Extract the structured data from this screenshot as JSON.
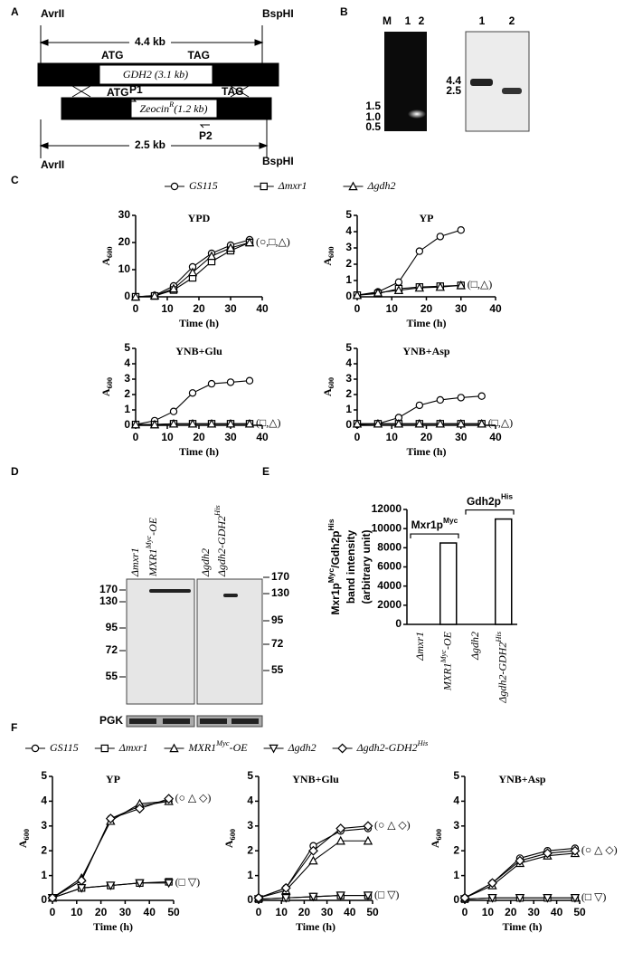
{
  "panel_labels": [
    "A",
    "B",
    "C",
    "D",
    "E",
    "F"
  ],
  "diagram": {
    "avr_top": "AvrII",
    "bsp_top": "BspHI",
    "size_top": "4.4 kb",
    "atg": "ATG",
    "tag": "TAG",
    "gene": "GDH2 (3.1 kb)",
    "atg2": "ATG",
    "p1": "P1",
    "tag2": "TAG",
    "zeocin": "ZeocinR(1.2 kb)",
    "zeocin_sup": [
      "R"
    ],
    "p2": "P2",
    "size_bottom": "2.5 kb",
    "avr_bottom": "AvrII",
    "bsp_bottom": "BspHI"
  },
  "gel_pcr": {
    "lanes": [
      "M",
      "1",
      "2"
    ],
    "markers": [
      "1.5",
      "1.0",
      "0.5"
    ]
  },
  "gel_southern": {
    "lanes": [
      "1",
      "2"
    ],
    "markers": [
      "4.4",
      "2.5"
    ]
  },
  "blot": {
    "lanes": [
      {
        "label": "Δmxr1",
        "sup": []
      },
      {
        "label": "MXR1Myc-OE",
        "sup": [
          "Myc"
        ]
      },
      {
        "label": "Δgdh2",
        "sup": []
      },
      {
        "label": "Δgdh2-GDH2His",
        "sup": [
          "His"
        ]
      }
    ],
    "ladder_left": [
      170,
      130,
      95,
      72,
      55
    ],
    "ladder_right": [
      170,
      130,
      95,
      72,
      55
    ],
    "loading": "PGK"
  },
  "chart_data": [
    {
      "type": "line",
      "title": "YPD",
      "xlabel": "Time (h)",
      "ylabel": "A600",
      "ylabel_sub": [
        "600"
      ],
      "xlim": [
        0,
        40
      ],
      "xticks": [
        0,
        10,
        20,
        30,
        40
      ],
      "ylim": [
        0,
        30
      ],
      "yticks": [
        0,
        10,
        20,
        30
      ],
      "x": [
        0,
        6,
        12,
        18,
        24,
        30,
        36
      ],
      "series": [
        {
          "name": "GS115",
          "marker": "circle",
          "values": [
            0,
            0.5,
            4,
            11,
            16,
            19,
            21
          ]
        },
        {
          "name": "Δmxr1",
          "marker": "square",
          "values": [
            0,
            0.3,
            2.5,
            7,
            13,
            17,
            20
          ]
        },
        {
          "name": "Δgdh2",
          "marker": "triangle",
          "values": [
            0,
            0.4,
            3,
            9,
            15,
            18,
            20
          ]
        }
      ],
      "annotations": [
        "(○,□,△)"
      ]
    },
    {
      "type": "line",
      "title": "YP",
      "xlabel": "Time (h)",
      "ylabel": "A600",
      "ylabel_sub": [
        "600"
      ],
      "xlim": [
        0,
        40
      ],
      "xticks": [
        0,
        10,
        20,
        30,
        40
      ],
      "ylim": [
        0,
        5
      ],
      "yticks": [
        0,
        1,
        2,
        3,
        4,
        5
      ],
      "x": [
        0,
        6,
        12,
        18,
        24,
        30
      ],
      "series": [
        {
          "marker": "circle",
          "values": [
            0.1,
            0.3,
            0.9,
            2.8,
            3.7,
            4.1
          ]
        },
        {
          "marker": "square",
          "values": [
            0.1,
            0.2,
            0.5,
            0.6,
            0.65,
            0.7
          ]
        },
        {
          "marker": "triangle",
          "values": [
            0.1,
            0.25,
            0.4,
            0.55,
            0.6,
            0.7
          ]
        }
      ],
      "annotations": [
        "(□,△)"
      ]
    },
    {
      "type": "line",
      "title": "YNB+Glu",
      "xlabel": "Time (h)",
      "ylabel": "A600",
      "ylabel_sub": [
        "600"
      ],
      "xlim": [
        0,
        40
      ],
      "xticks": [
        0,
        10,
        20,
        30,
        40
      ],
      "ylim": [
        0,
        5
      ],
      "yticks": [
        0,
        1,
        2,
        3,
        4,
        5
      ],
      "x": [
        0,
        6,
        12,
        18,
        24,
        30,
        36
      ],
      "series": [
        {
          "marker": "circle",
          "values": [
            0.05,
            0.3,
            0.9,
            2.1,
            2.7,
            2.8,
            2.9
          ]
        },
        {
          "marker": "square",
          "values": [
            0.05,
            0.05,
            0.1,
            0.1,
            0.1,
            0.1,
            0.1
          ]
        },
        {
          "marker": "triangle",
          "values": [
            0.05,
            0.05,
            0.1,
            0.1,
            0.1,
            0.1,
            0.1
          ]
        }
      ],
      "annotations": [
        "(□,△)"
      ]
    },
    {
      "type": "line",
      "title": "YNB+Asp",
      "xlabel": "Time (h)",
      "ylabel": "A600",
      "ylabel_sub": [
        "600"
      ],
      "xlim": [
        0,
        40
      ],
      "xticks": [
        0,
        10,
        20,
        30,
        40
      ],
      "ylim": [
        0,
        5
      ],
      "yticks": [
        0,
        1,
        2,
        3,
        4,
        5
      ],
      "x": [
        0,
        6,
        12,
        18,
        24,
        30,
        36
      ],
      "series": [
        {
          "marker": "circle",
          "values": [
            0.05,
            0.1,
            0.5,
            1.3,
            1.65,
            1.8,
            1.9
          ]
        },
        {
          "marker": "square",
          "values": [
            0.1,
            0.1,
            0.1,
            0.1,
            0.1,
            0.1,
            0.1
          ]
        },
        {
          "marker": "triangle",
          "values": [
            0.1,
            0.1,
            0.1,
            0.1,
            0.1,
            0.1,
            0.1
          ]
        }
      ],
      "annotations": [
        "(□,△)"
      ]
    },
    {
      "type": "bar",
      "ylabel": [
        "Mxr1pMyc/Gdh2pHis",
        "band intensity",
        "(arbitrary unit)"
      ],
      "ylabel_sups": [
        "Myc",
        "His"
      ],
      "categories": [
        "Δmxr1",
        "MXR1Myc-OE",
        "Δgdh2",
        "Δgdh2-GDH2His"
      ],
      "category_sups": [
        [],
        [
          "Myc"
        ],
        [],
        [
          "His"
        ]
      ],
      "values": [
        0,
        8500,
        0,
        11000
      ],
      "color": "#ffffff",
      "ylim": [
        0,
        12000
      ],
      "yticks": [
        0,
        2000,
        4000,
        6000,
        8000,
        10000,
        12000
      ],
      "groups": [
        {
          "label": "Mxr1pMyc",
          "sup": [
            "Myc"
          ]
        },
        {
          "label": "Gdh2pHis",
          "sup": [
            "His"
          ]
        }
      ]
    },
    {
      "type": "line",
      "title": "YP",
      "xlabel": "Time (h)",
      "ylabel": "A600",
      "ylabel_sub": [
        "600"
      ],
      "xlim": [
        0,
        50
      ],
      "xticks": [
        0,
        10,
        20,
        30,
        40,
        50
      ],
      "ylim": [
        0,
        5
      ],
      "yticks": [
        0,
        1,
        2,
        3,
        4,
        5
      ],
      "x": [
        0,
        12,
        24,
        36,
        48
      ],
      "series": [
        {
          "name": "GS115",
          "sup": [],
          "marker": "circle",
          "values": [
            0.1,
            0.8,
            3.3,
            3.8,
            4.0
          ]
        },
        {
          "name": "Δmxr1",
          "sup": [],
          "marker": "square",
          "values": [
            0.1,
            0.5,
            0.6,
            0.7,
            0.75
          ]
        },
        {
          "name": "MXR1Myc-OE",
          "sup": [
            "Myc"
          ],
          "marker": "triangle",
          "values": [
            0.1,
            0.9,
            3.2,
            3.9,
            4.0
          ]
        },
        {
          "name": "Δgdh2",
          "sup": [],
          "marker": "triangle-down",
          "values": [
            0.1,
            0.5,
            0.6,
            0.7,
            0.7
          ]
        },
        {
          "name": "Δgdh2-GDH2His",
          "sup": [
            "His"
          ],
          "marker": "diamond",
          "values": [
            0.1,
            0.8,
            3.3,
            3.7,
            4.1
          ]
        }
      ],
      "annotations": [
        "(□ ▽)",
        "(○ △ ◇)"
      ]
    },
    {
      "type": "line",
      "title": "YNB+Glu",
      "xlabel": "Time (h)",
      "ylabel": "A600",
      "ylabel_sub": [
        "600"
      ],
      "xlim": [
        0,
        50
      ],
      "xticks": [
        0,
        10,
        20,
        30,
        40,
        50
      ],
      "ylim": [
        0,
        5
      ],
      "yticks": [
        0,
        1,
        2,
        3,
        4,
        5
      ],
      "x": [
        0,
        12,
        24,
        36,
        48
      ],
      "series": [
        {
          "marker": "circle",
          "values": [
            0.1,
            0.5,
            2.2,
            2.8,
            2.9
          ]
        },
        {
          "marker": "square",
          "values": [
            0.05,
            0.1,
            0.15,
            0.2,
            0.2
          ]
        },
        {
          "marker": "triangle",
          "values": [
            0.1,
            0.4,
            1.6,
            2.4,
            2.4
          ]
        },
        {
          "marker": "triangle-down",
          "values": [
            0.05,
            0.1,
            0.15,
            0.2,
            0.2
          ]
        },
        {
          "marker": "diamond",
          "values": [
            0.1,
            0.5,
            2.0,
            2.9,
            3.0
          ]
        }
      ],
      "annotations": [
        "(□ ▽)",
        "(○ △ ◇)"
      ]
    },
    {
      "type": "line",
      "title": "YNB+Asp",
      "xlabel": "Time (h)",
      "ylabel": "A600",
      "ylabel_sub": [
        "600"
      ],
      "xlim": [
        0,
        50
      ],
      "xticks": [
        0,
        10,
        20,
        30,
        40,
        50
      ],
      "ylim": [
        0,
        5
      ],
      "yticks": [
        0,
        1,
        2,
        3,
        4,
        5
      ],
      "x": [
        0,
        12,
        24,
        36,
        48
      ],
      "series": [
        {
          "marker": "circle",
          "values": [
            0.1,
            0.7,
            1.7,
            2.0,
            2.1
          ]
        },
        {
          "marker": "square",
          "values": [
            0.05,
            0.1,
            0.1,
            0.1,
            0.1
          ]
        },
        {
          "marker": "triangle",
          "values": [
            0.1,
            0.6,
            1.5,
            1.8,
            1.9
          ]
        },
        {
          "marker": "triangle-down",
          "values": [
            0.05,
            0.1,
            0.1,
            0.1,
            0.1
          ]
        },
        {
          "marker": "diamond",
          "values": [
            0.1,
            0.7,
            1.6,
            1.9,
            2.0
          ]
        }
      ],
      "annotations": [
        "(□ ▽)",
        "(○ △ ◇)"
      ]
    }
  ]
}
